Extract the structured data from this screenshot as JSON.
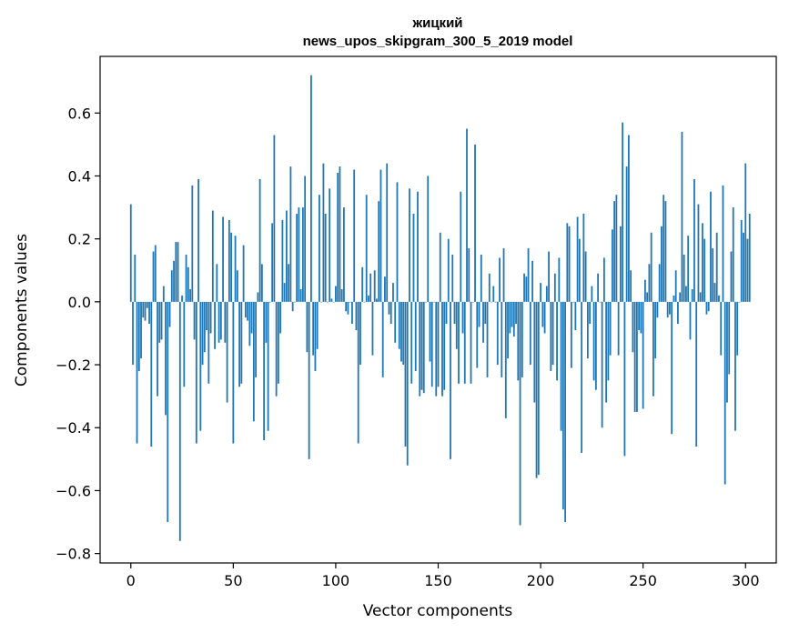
{
  "chart_data": {
    "type": "bar",
    "title_line1": "жицкий",
    "title_line2": "news_upos_skipgram_300_5_2019 model",
    "xlabel": "Vector components",
    "ylabel": "Components values",
    "xlim": [
      -15,
      315
    ],
    "ylim": [
      -0.83,
      0.78
    ],
    "xticks": [
      0,
      50,
      100,
      150,
      200,
      250,
      300
    ],
    "xtick_labels": [
      "0",
      "50",
      "100",
      "150",
      "200",
      "250",
      "300"
    ],
    "yticks": [
      -0.8,
      -0.6,
      -0.4,
      -0.2,
      0.0,
      0.2,
      0.4,
      0.6
    ],
    "ytick_labels": [
      "−0.8",
      "−0.6",
      "−0.4",
      "−0.2",
      "0.0",
      "0.2",
      "0.4",
      "0.6"
    ],
    "grid": false,
    "bar_color": "#1f77b4",
    "values": [
      0.31,
      -0.2,
      0.15,
      -0.45,
      -0.22,
      -0.18,
      -0.05,
      -0.06,
      -0.02,
      -0.07,
      -0.46,
      0.16,
      0.18,
      -0.3,
      -0.13,
      -0.12,
      0.05,
      -0.36,
      -0.7,
      -0.08,
      0.1,
      0.13,
      0.19,
      0.19,
      -0.76,
      0.02,
      -0.27,
      0.15,
      0.11,
      0.04,
      0.37,
      -0.12,
      -0.45,
      0.39,
      -0.41,
      -0.2,
      -0.16,
      -0.09,
      -0.26,
      -0.1,
      0.29,
      -0.15,
      0.12,
      -0.13,
      -0.12,
      0.27,
      -0.13,
      -0.32,
      0.26,
      0.22,
      -0.45,
      0.21,
      0.1,
      -0.27,
      -0.26,
      0.18,
      -0.05,
      -0.06,
      -0.14,
      -0.1,
      -0.38,
      -0.24,
      0.03,
      0.39,
      0.12,
      -0.44,
      -0.13,
      -0.41,
      0.0,
      0.25,
      0.53,
      -0.3,
      -0.26,
      -0.1,
      0.26,
      0.06,
      0.29,
      0.12,
      0.43,
      -0.03,
      0.0,
      0.28,
      0.3,
      0.04,
      0.3,
      0.4,
      -0.16,
      -0.5,
      0.72,
      -0.17,
      -0.22,
      -0.15,
      0.34,
      0.0,
      0.44,
      0.28,
      0.0,
      0.36,
      0.01,
      0.0,
      0.05,
      0.41,
      0.43,
      0.04,
      0.3,
      -0.03,
      -0.04,
      0.0,
      -0.07,
      0.42,
      -0.09,
      -0.45,
      -0.2,
      0.11,
      0.0,
      0.34,
      0.02,
      0.09,
      -0.17,
      0.1,
      0.01,
      0.32,
      0.42,
      -0.24,
      0.08,
      0.44,
      -0.04,
      -0.07,
      0.06,
      -0.13,
      0.38,
      -0.15,
      -0.19,
      -0.2,
      -0.46,
      -0.52,
      0.36,
      -0.26,
      0.28,
      -0.22,
      0.35,
      -0.3,
      -0.28,
      -0.29,
      0.0,
      0.4,
      -0.19,
      -0.27,
      0.0,
      -0.3,
      -0.27,
      0.22,
      -0.3,
      -0.28,
      -0.07,
      0.2,
      -0.5,
      0.15,
      -0.07,
      -0.15,
      -0.26,
      0.35,
      -0.1,
      -0.26,
      0.55,
      0.17,
      -0.26,
      0.0,
      0.5,
      -0.21,
      -0.08,
      0.15,
      -0.13,
      -0.07,
      -0.24,
      0.09,
      0.0,
      0.05,
      0.0,
      -0.2,
      0.14,
      -0.24,
      0.17,
      -0.37,
      -0.18,
      -0.1,
      -0.08,
      -0.11,
      -0.07,
      -0.25,
      -0.71,
      -0.24,
      0.09,
      0.08,
      0.17,
      -0.2,
      0.13,
      -0.32,
      -0.56,
      -0.55,
      0.06,
      -0.08,
      -0.1,
      0.05,
      0.16,
      -0.22,
      -0.2,
      0.09,
      -0.25,
      0.14,
      -0.41,
      -0.66,
      -0.7,
      0.25,
      0.24,
      -0.21,
      0.0,
      -0.09,
      0.27,
      0.2,
      -0.48,
      0.28,
      0.16,
      -0.18,
      -0.07,
      0.05,
      -0.25,
      -0.28,
      0.09,
      0.0,
      -0.4,
      0.14,
      -0.32,
      -0.25,
      -0.17,
      0.23,
      0.32,
      0.34,
      -0.17,
      0.24,
      0.57,
      -0.49,
      0.43,
      0.53,
      0.1,
      -0.16,
      -0.35,
      -0.35,
      -0.09,
      -0.1,
      -0.34,
      0.07,
      0.03,
      0.12,
      0.22,
      -0.3,
      -0.18,
      -0.05,
      0.12,
      0.24,
      0.34,
      0.32,
      -0.05,
      -0.04,
      -0.42,
      0.02,
      0.1,
      -0.07,
      0.03,
      0.54,
      0.15,
      0.05,
      0.21,
      -0.12,
      0.04,
      0.39,
      -0.46,
      0.31,
      0.03,
      0.25,
      0.2,
      -0.04,
      -0.03,
      0.35,
      0.17,
      0.06,
      0.22,
      0.02,
      -0.17,
      0.37,
      -0.58,
      -0.32,
      -0.23,
      0.16,
      0.3,
      -0.41,
      -0.17,
      0.0,
      0.26,
      0.22,
      0.44,
      0.2,
      0.28
    ]
  }
}
